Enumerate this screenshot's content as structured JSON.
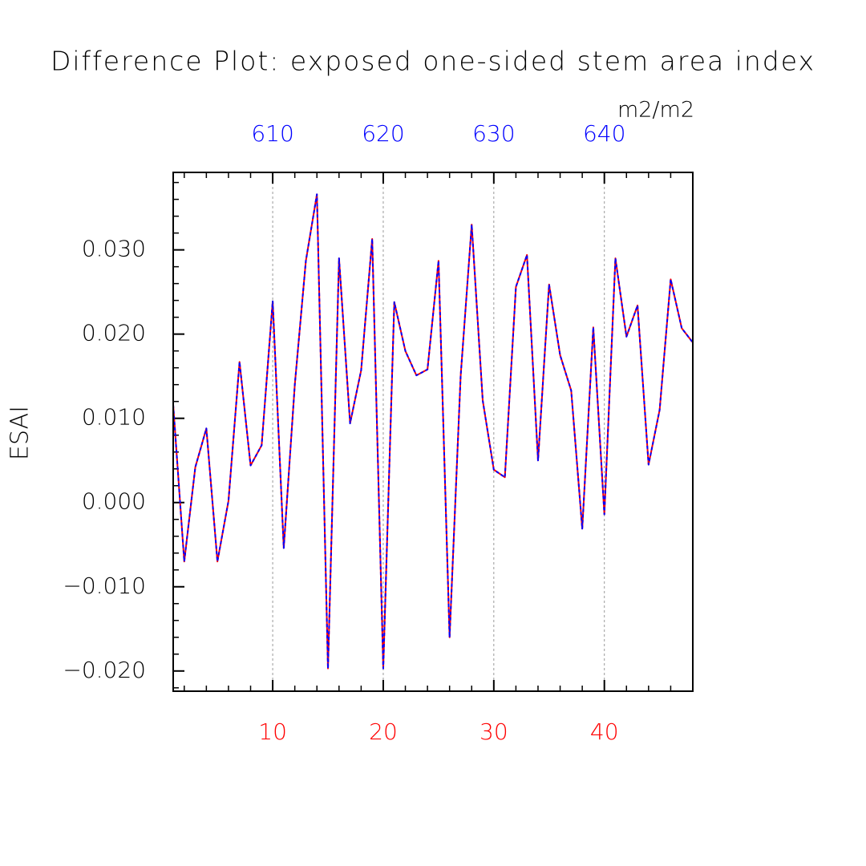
{
  "chart_data": {
    "type": "line",
    "title": "Difference Plot: exposed one-sided stem area index",
    "units": "m2/m2",
    "y_label": "ESAI",
    "x": [
      1,
      2,
      3,
      4,
      5,
      6,
      7,
      8,
      9,
      10,
      11,
      12,
      13,
      14,
      15,
      16,
      17,
      18,
      19,
      20,
      21,
      22,
      23,
      24,
      25,
      26,
      27,
      28,
      29,
      30,
      31,
      32,
      33,
      34,
      35,
      36,
      37,
      38,
      39,
      40,
      41,
      42,
      43,
      44,
      45,
      46,
      47,
      48
    ],
    "series": [
      {
        "color": "#ff0000",
        "line_style": "solid",
        "values": [
          0.0116,
          -0.007,
          0.0042,
          0.0088,
          -0.007,
          0.0002,
          0.0167,
          0.0044,
          0.0068,
          0.0239,
          -0.0054,
          0.014,
          0.0287,
          0.0366,
          -0.0197,
          0.029,
          0.0094,
          0.0157,
          0.0313,
          -0.0197,
          0.0238,
          0.018,
          0.0151,
          0.0158,
          0.0287,
          -0.016,
          0.015,
          0.033,
          0.0121,
          0.0039,
          0.003,
          0.0256,
          0.0294,
          0.005,
          0.0259,
          0.0175,
          0.0133,
          -0.0031,
          0.0208,
          -0.0014,
          0.029,
          0.0197,
          0.0234,
          0.0045,
          0.011,
          0.0265,
          0.0207,
          0.019
        ]
      },
      {
        "color": "#0000ff",
        "line_style": "dashed",
        "values": [
          0.0116,
          -0.007,
          0.0042,
          0.0088,
          -0.007,
          0.0002,
          0.0167,
          0.0044,
          0.0068,
          0.0239,
          -0.0054,
          0.014,
          0.0287,
          0.0366,
          -0.0197,
          0.029,
          0.0094,
          0.0157,
          0.0313,
          -0.0197,
          0.0238,
          0.018,
          0.0151,
          0.0158,
          0.0287,
          -0.016,
          0.015,
          0.033,
          0.0121,
          0.0039,
          0.003,
          0.0256,
          0.0294,
          0.005,
          0.0259,
          0.0175,
          0.0133,
          -0.0031,
          0.0208,
          -0.0014,
          0.029,
          0.0197,
          0.0234,
          0.0045,
          0.011,
          0.0265,
          0.0207,
          0.019
        ]
      }
    ],
    "xlim": [
      1,
      48
    ],
    "xticks": [
      10,
      20,
      30,
      40
    ],
    "xtick_color": "#ff0000",
    "x2lim": [
      601,
      648
    ],
    "x2ticks": [
      610,
      620,
      630,
      640
    ],
    "x2tick_color": "#0000ff",
    "ylim": [
      -0.0224,
      0.0392
    ],
    "yticks": [
      {
        "value": -0.02,
        "label": "−0.020"
      },
      {
        "value": -0.01,
        "label": "−0.010"
      },
      {
        "value": 0,
        "label": "0.000"
      },
      {
        "value": 0.01,
        "label": "0.010"
      },
      {
        "value": 0.02,
        "label": "0.020"
      },
      {
        "value": 0.03,
        "label": "0.030"
      }
    ],
    "x_grid": true
  }
}
